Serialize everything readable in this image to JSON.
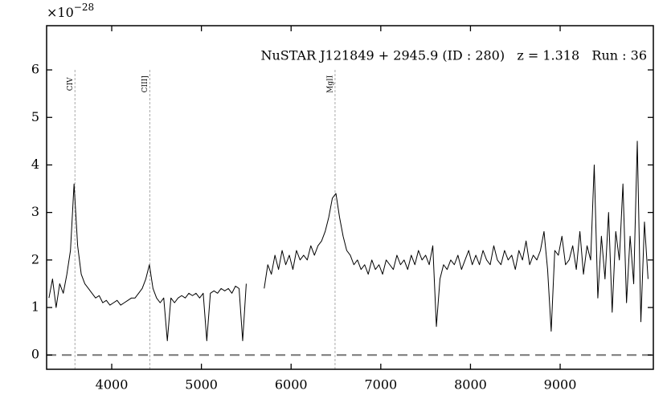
{
  "chart_data": {
    "type": "line",
    "title": "NuSTAR J121849 + 2945.9 (ID : 280)   z = 1.318   Run : 36",
    "multiplier": {
      "base": "×10",
      "exponent": "−28"
    },
    "xlim": [
      3274,
      10039
    ],
    "ylim": [
      -0.3,
      6.93
    ],
    "xticks": [
      4000,
      5000,
      6000,
      7000,
      8000,
      9000
    ],
    "yticks": [
      0,
      1,
      2,
      3,
      4,
      5,
      6
    ],
    "zero_line": true,
    "lines": [
      {
        "label": "CIV",
        "x": 3590
      },
      {
        "label": "CIII]",
        "x": 4425
      },
      {
        "label": "MgII",
        "x": 6490
      }
    ],
    "series": [
      {
        "color": "#000000",
        "x": [
          3300,
          3340,
          3380,
          3420,
          3460,
          3500,
          3540,
          3580,
          3620,
          3660,
          3700,
          3740,
          3780,
          3820,
          3860,
          3900,
          3940,
          3980,
          4020,
          4060,
          4100,
          4140,
          4180,
          4220,
          4260,
          4300,
          4340,
          4380,
          4420,
          4460,
          4500,
          4540,
          4580,
          4620,
          4660,
          4700,
          4740,
          4780,
          4820,
          4860,
          4900,
          4940,
          4980,
          5020,
          5060,
          5100,
          5140,
          5180,
          5220,
          5260,
          5300,
          5340,
          5380,
          5420,
          5460,
          5500,
          5540,
          5580,
          5620,
          5660,
          5700,
          5740,
          5780,
          5820,
          5860,
          5900,
          5940,
          5980,
          6020,
          6060,
          6100,
          6140,
          6180,
          6220,
          6260,
          6300,
          6340,
          6380,
          6420,
          6460,
          6500,
          6540,
          6580,
          6620,
          6660,
          6700,
          6740,
          6780,
          6820,
          6860,
          6900,
          6940,
          6980,
          7020,
          7060,
          7100,
          7140,
          7180,
          7220,
          7260,
          7300,
          7340,
          7380,
          7420,
          7460,
          7500,
          7540,
          7580,
          7620,
          7660,
          7700,
          7740,
          7780,
          7820,
          7860,
          7900,
          7940,
          7980,
          8020,
          8060,
          8100,
          8140,
          8180,
          8220,
          8260,
          8300,
          8340,
          8380,
          8420,
          8460,
          8500,
          8540,
          8580,
          8620,
          8660,
          8700,
          8740,
          8780,
          8820,
          8860,
          8900,
          8940,
          8980,
          9020,
          9060,
          9100,
          9140,
          9180,
          9220,
          9260,
          9300,
          9340,
          9380,
          9420,
          9460,
          9500,
          9540,
          9580,
          9620,
          9660,
          9700,
          9740,
          9780,
          9820,
          9860,
          9900,
          9940,
          9980
        ],
        "values": [
          1.2,
          1.6,
          1.0,
          1.5,
          1.3,
          1.7,
          2.2,
          3.6,
          2.3,
          1.7,
          1.5,
          1.4,
          1.3,
          1.2,
          1.25,
          1.1,
          1.15,
          1.05,
          1.1,
          1.15,
          1.05,
          1.1,
          1.15,
          1.2,
          1.2,
          1.3,
          1.4,
          1.6,
          1.9,
          1.4,
          1.2,
          1.1,
          1.2,
          0.3,
          1.2,
          1.1,
          1.2,
          1.25,
          1.2,
          1.3,
          1.25,
          1.3,
          1.2,
          1.3,
          0.3,
          1.3,
          1.35,
          1.3,
          1.4,
          1.35,
          1.4,
          1.3,
          1.45,
          1.4,
          0.3,
          1.5,
          null,
          null,
          null,
          null,
          1.4,
          1.9,
          1.7,
          2.1,
          1.8,
          2.2,
          1.9,
          2.1,
          1.8,
          2.2,
          2.0,
          2.1,
          2.0,
          2.3,
          2.1,
          2.3,
          2.4,
          2.6,
          2.9,
          3.3,
          3.4,
          2.9,
          2.5,
          2.2,
          2.1,
          1.9,
          2.0,
          1.8,
          1.9,
          1.7,
          2.0,
          1.8,
          1.9,
          1.7,
          2.0,
          1.9,
          1.8,
          2.1,
          1.9,
          2.0,
          1.8,
          2.1,
          1.9,
          2.2,
          2.0,
          2.1,
          1.9,
          2.3,
          0.6,
          1.6,
          1.9,
          1.8,
          2.0,
          1.9,
          2.1,
          1.8,
          2.0,
          2.2,
          1.9,
          2.1,
          1.9,
          2.2,
          2.0,
          1.9,
          2.3,
          2.0,
          1.9,
          2.2,
          2.0,
          2.1,
          1.8,
          2.2,
          2.0,
          2.4,
          1.9,
          2.1,
          2.0,
          2.2,
          2.6,
          1.8,
          0.5,
          2.2,
          2.1,
          2.5,
          1.9,
          2.0,
          2.3,
          1.8,
          2.6,
          1.7,
          2.3,
          2.0,
          4.0,
          1.2,
          2.5,
          1.6,
          3.0,
          0.9,
          2.6,
          2.0,
          3.6,
          1.1,
          2.5,
          1.5,
          4.5,
          0.7,
          2.8,
          1.6
        ]
      }
    ]
  }
}
